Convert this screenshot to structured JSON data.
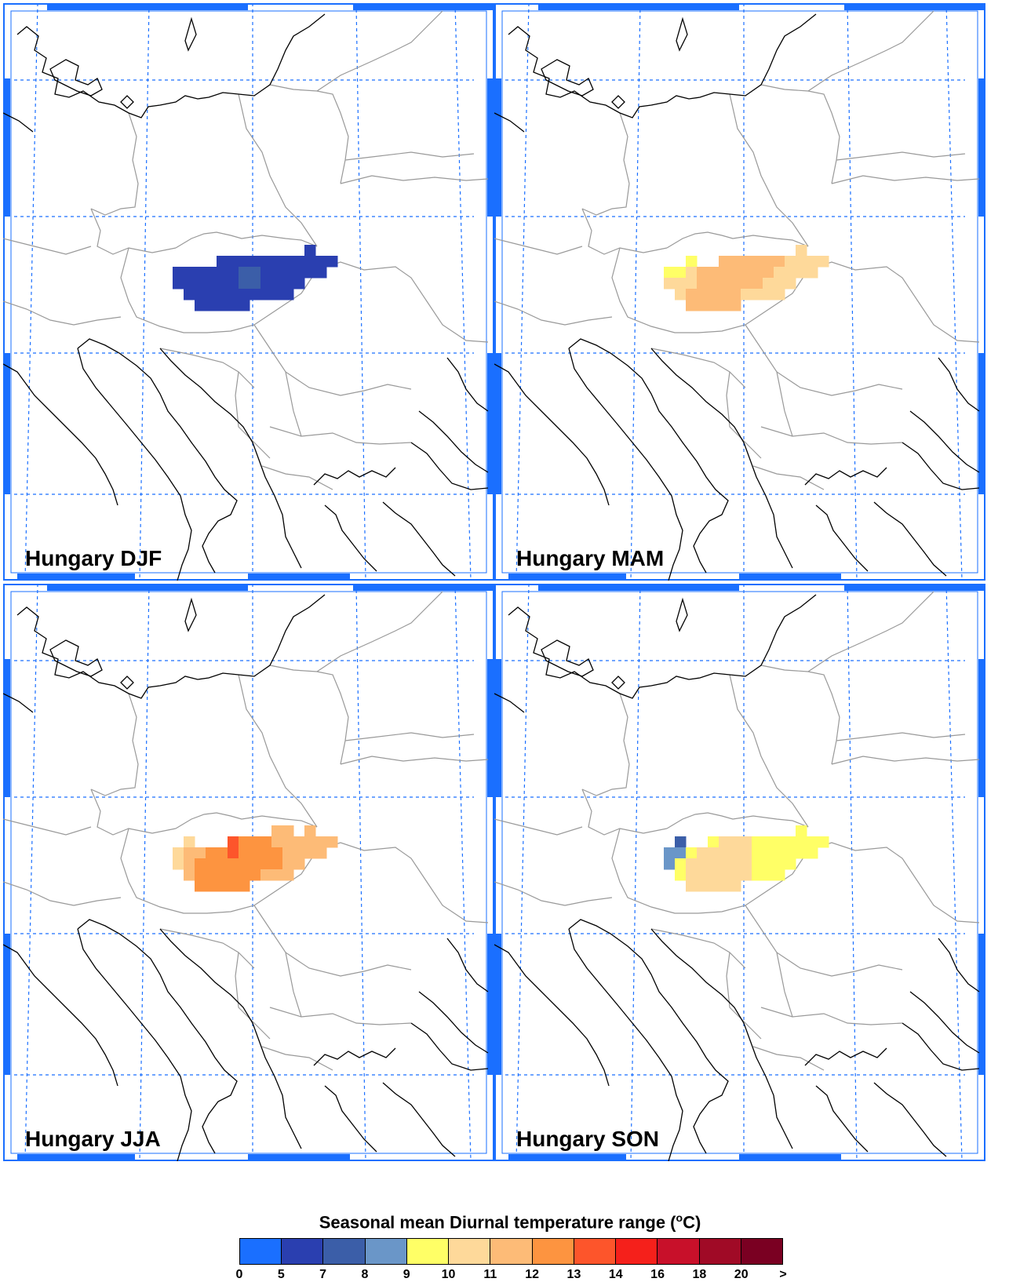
{
  "panels": [
    {
      "id": "djf",
      "label": "Hungary DJF",
      "cells": [
        {
          "c": 12,
          "r": 0,
          "v": 6
        },
        {
          "c": 12,
          "r": 1,
          "v": 6
        },
        {
          "c": 4,
          "r": 1,
          "v": 6
        },
        {
          "c": 5,
          "r": 1,
          "v": 6
        },
        {
          "c": 6,
          "r": 1,
          "v": 6
        },
        {
          "c": 7,
          "r": 1,
          "v": 6
        },
        {
          "c": 8,
          "r": 1,
          "v": 6
        },
        {
          "c": 9,
          "r": 1,
          "v": 6
        },
        {
          "c": 10,
          "r": 1,
          "v": 6
        },
        {
          "c": 11,
          "r": 1,
          "v": 6
        },
        {
          "c": 13,
          "r": 1,
          "v": 6
        },
        {
          "c": 14,
          "r": 1,
          "v": 6
        },
        {
          "c": 0,
          "r": 2,
          "v": 6
        },
        {
          "c": 1,
          "r": 2,
          "v": 6
        },
        {
          "c": 2,
          "r": 2,
          "v": 6
        },
        {
          "c": 3,
          "r": 2,
          "v": 6
        },
        {
          "c": 4,
          "r": 2,
          "v": 6
        },
        {
          "c": 5,
          "r": 2,
          "v": 6
        },
        {
          "c": 6,
          "r": 2,
          "v": 7.5
        },
        {
          "c": 7,
          "r": 2,
          "v": 7.5
        },
        {
          "c": 8,
          "r": 2,
          "v": 6
        },
        {
          "c": 9,
          "r": 2,
          "v": 6
        },
        {
          "c": 10,
          "r": 2,
          "v": 6
        },
        {
          "c": 11,
          "r": 2,
          "v": 6
        },
        {
          "c": 12,
          "r": 2,
          "v": 6
        },
        {
          "c": 13,
          "r": 2,
          "v": 6
        },
        {
          "c": 0,
          "r": 3,
          "v": 6
        },
        {
          "c": 1,
          "r": 3,
          "v": 6
        },
        {
          "c": 2,
          "r": 3,
          "v": 6
        },
        {
          "c": 3,
          "r": 3,
          "v": 6
        },
        {
          "c": 4,
          "r": 3,
          "v": 6
        },
        {
          "c": 5,
          "r": 3,
          "v": 6
        },
        {
          "c": 6,
          "r": 3,
          "v": 7.5
        },
        {
          "c": 7,
          "r": 3,
          "v": 7.5
        },
        {
          "c": 8,
          "r": 3,
          "v": 6
        },
        {
          "c": 9,
          "r": 3,
          "v": 6
        },
        {
          "c": 10,
          "r": 3,
          "v": 6
        },
        {
          "c": 11,
          "r": 3,
          "v": 6
        },
        {
          "c": 1,
          "r": 4,
          "v": 6
        },
        {
          "c": 2,
          "r": 4,
          "v": 6
        },
        {
          "c": 3,
          "r": 4,
          "v": 6
        },
        {
          "c": 4,
          "r": 4,
          "v": 6
        },
        {
          "c": 5,
          "r": 4,
          "v": 6
        },
        {
          "c": 6,
          "r": 4,
          "v": 6
        },
        {
          "c": 7,
          "r": 4,
          "v": 6
        },
        {
          "c": 8,
          "r": 4,
          "v": 6
        },
        {
          "c": 9,
          "r": 4,
          "v": 6
        },
        {
          "c": 10,
          "r": 4,
          "v": 6
        },
        {
          "c": 2,
          "r": 5,
          "v": 6
        },
        {
          "c": 3,
          "r": 5,
          "v": 6
        },
        {
          "c": 4,
          "r": 5,
          "v": 6
        },
        {
          "c": 5,
          "r": 5,
          "v": 6
        },
        {
          "c": 6,
          "r": 5,
          "v": 6
        }
      ]
    },
    {
      "id": "mam",
      "label": "Hungary MAM",
      "cells": [
        {
          "c": 12,
          "r": 0,
          "v": 10.5
        },
        {
          "c": 12,
          "r": 1,
          "v": 10.5
        },
        {
          "c": 2,
          "r": 1,
          "v": 9.5
        },
        {
          "c": 5,
          "r": 1,
          "v": 11.5
        },
        {
          "c": 6,
          "r": 1,
          "v": 11.5
        },
        {
          "c": 7,
          "r": 1,
          "v": 11.5
        },
        {
          "c": 8,
          "r": 1,
          "v": 11.5
        },
        {
          "c": 9,
          "r": 1,
          "v": 11.5
        },
        {
          "c": 10,
          "r": 1,
          "v": 11.5
        },
        {
          "c": 11,
          "r": 1,
          "v": 10.5
        },
        {
          "c": 13,
          "r": 1,
          "v": 10.5
        },
        {
          "c": 14,
          "r": 1,
          "v": 10.5
        },
        {
          "c": 0,
          "r": 2,
          "v": 9.5
        },
        {
          "c": 1,
          "r": 2,
          "v": 9.5
        },
        {
          "c": 2,
          "r": 2,
          "v": 10.5
        },
        {
          "c": 3,
          "r": 2,
          "v": 11.5
        },
        {
          "c": 4,
          "r": 2,
          "v": 11.5
        },
        {
          "c": 5,
          "r": 2,
          "v": 11.5
        },
        {
          "c": 6,
          "r": 2,
          "v": 11.5
        },
        {
          "c": 7,
          "r": 2,
          "v": 11.5
        },
        {
          "c": 8,
          "r": 2,
          "v": 11.5
        },
        {
          "c": 9,
          "r": 2,
          "v": 11.5
        },
        {
          "c": 10,
          "r": 2,
          "v": 10.5
        },
        {
          "c": 11,
          "r": 2,
          "v": 10.5
        },
        {
          "c": 12,
          "r": 2,
          "v": 10.5
        },
        {
          "c": 13,
          "r": 2,
          "v": 10.5
        },
        {
          "c": 0,
          "r": 3,
          "v": 10.5
        },
        {
          "c": 1,
          "r": 3,
          "v": 10.5
        },
        {
          "c": 2,
          "r": 3,
          "v": 10.5
        },
        {
          "c": 3,
          "r": 3,
          "v": 11.5
        },
        {
          "c": 4,
          "r": 3,
          "v": 11.5
        },
        {
          "c": 5,
          "r": 3,
          "v": 11.5
        },
        {
          "c": 6,
          "r": 3,
          "v": 11.5
        },
        {
          "c": 7,
          "r": 3,
          "v": 11.5
        },
        {
          "c": 8,
          "r": 3,
          "v": 11.5
        },
        {
          "c": 9,
          "r": 3,
          "v": 10.5
        },
        {
          "c": 10,
          "r": 3,
          "v": 10.5
        },
        {
          "c": 11,
          "r": 3,
          "v": 10.5
        },
        {
          "c": 1,
          "r": 4,
          "v": 10.5
        },
        {
          "c": 2,
          "r": 4,
          "v": 11.5
        },
        {
          "c": 3,
          "r": 4,
          "v": 11.5
        },
        {
          "c": 4,
          "r": 4,
          "v": 11.5
        },
        {
          "c": 5,
          "r": 4,
          "v": 11.5
        },
        {
          "c": 6,
          "r": 4,
          "v": 11.5
        },
        {
          "c": 7,
          "r": 4,
          "v": 10.5
        },
        {
          "c": 8,
          "r": 4,
          "v": 10.5
        },
        {
          "c": 9,
          "r": 4,
          "v": 10.5
        },
        {
          "c": 10,
          "r": 4,
          "v": 10.5
        },
        {
          "c": 2,
          "r": 5,
          "v": 11.5
        },
        {
          "c": 3,
          "r": 5,
          "v": 11.5
        },
        {
          "c": 4,
          "r": 5,
          "v": 11.5
        },
        {
          "c": 5,
          "r": 5,
          "v": 11.5
        },
        {
          "c": 6,
          "r": 5,
          "v": 11.5
        }
      ]
    },
    {
      "id": "jja",
      "label": "Hungary JJA",
      "cells": [
        {
          "c": 9,
          "r": 0,
          "v": 11.5
        },
        {
          "c": 10,
          "r": 0,
          "v": 11.5
        },
        {
          "c": 12,
          "r": 0,
          "v": 11.5
        },
        {
          "c": 12,
          "r": 1,
          "v": 11.5
        },
        {
          "c": 1,
          "r": 1,
          "v": 10.5
        },
        {
          "c": 5,
          "r": 1,
          "v": 13.5
        },
        {
          "c": 6,
          "r": 1,
          "v": 12.5
        },
        {
          "c": 7,
          "r": 1,
          "v": 12.5
        },
        {
          "c": 8,
          "r": 1,
          "v": 12.5
        },
        {
          "c": 9,
          "r": 1,
          "v": 11.5
        },
        {
          "c": 10,
          "r": 1,
          "v": 11.5
        },
        {
          "c": 11,
          "r": 1,
          "v": 11.5
        },
        {
          "c": 13,
          "r": 1,
          "v": 11.5
        },
        {
          "c": 14,
          "r": 1,
          "v": 11.5
        },
        {
          "c": 0,
          "r": 2,
          "v": 10.5
        },
        {
          "c": 1,
          "r": 2,
          "v": 11.5
        },
        {
          "c": 2,
          "r": 2,
          "v": 11.5
        },
        {
          "c": 3,
          "r": 2,
          "v": 12.5
        },
        {
          "c": 4,
          "r": 2,
          "v": 12.5
        },
        {
          "c": 5,
          "r": 2,
          "v": 13.5
        },
        {
          "c": 6,
          "r": 2,
          "v": 12.5
        },
        {
          "c": 7,
          "r": 2,
          "v": 12.5
        },
        {
          "c": 8,
          "r": 2,
          "v": 12.5
        },
        {
          "c": 9,
          "r": 2,
          "v": 12.5
        },
        {
          "c": 10,
          "r": 2,
          "v": 11.5
        },
        {
          "c": 11,
          "r": 2,
          "v": 11.5
        },
        {
          "c": 12,
          "r": 2,
          "v": 11.5
        },
        {
          "c": 13,
          "r": 2,
          "v": 11.5
        },
        {
          "c": 0,
          "r": 3,
          "v": 10.5
        },
        {
          "c": 1,
          "r": 3,
          "v": 11.5
        },
        {
          "c": 2,
          "r": 3,
          "v": 12.5
        },
        {
          "c": 3,
          "r": 3,
          "v": 12.5
        },
        {
          "c": 4,
          "r": 3,
          "v": 12.5
        },
        {
          "c": 5,
          "r": 3,
          "v": 12.5
        },
        {
          "c": 6,
          "r": 3,
          "v": 12.5
        },
        {
          "c": 7,
          "r": 3,
          "v": 12.5
        },
        {
          "c": 8,
          "r": 3,
          "v": 12.5
        },
        {
          "c": 9,
          "r": 3,
          "v": 12.5
        },
        {
          "c": 10,
          "r": 3,
          "v": 11.5
        },
        {
          "c": 11,
          "r": 3,
          "v": 11.5
        },
        {
          "c": 1,
          "r": 4,
          "v": 11.5
        },
        {
          "c": 2,
          "r": 4,
          "v": 12.5
        },
        {
          "c": 3,
          "r": 4,
          "v": 12.5
        },
        {
          "c": 4,
          "r": 4,
          "v": 12.5
        },
        {
          "c": 5,
          "r": 4,
          "v": 12.5
        },
        {
          "c": 6,
          "r": 4,
          "v": 12.5
        },
        {
          "c": 7,
          "r": 4,
          "v": 12.5
        },
        {
          "c": 8,
          "r": 4,
          "v": 11.5
        },
        {
          "c": 9,
          "r": 4,
          "v": 11.5
        },
        {
          "c": 10,
          "r": 4,
          "v": 11.5
        },
        {
          "c": 2,
          "r": 5,
          "v": 12.5
        },
        {
          "c": 3,
          "r": 5,
          "v": 12.5
        },
        {
          "c": 4,
          "r": 5,
          "v": 12.5
        },
        {
          "c": 5,
          "r": 5,
          "v": 12.5
        },
        {
          "c": 6,
          "r": 5,
          "v": 12.5
        }
      ]
    },
    {
      "id": "son",
      "label": "Hungary SON",
      "cells": [
        {
          "c": 12,
          "r": 0,
          "v": 9.5
        },
        {
          "c": 12,
          "r": 1,
          "v": 9.5
        },
        {
          "c": 1,
          "r": 1,
          "v": 7.5
        },
        {
          "c": 4,
          "r": 1,
          "v": 9.5
        },
        {
          "c": 5,
          "r": 1,
          "v": 10.5
        },
        {
          "c": 6,
          "r": 1,
          "v": 10.5
        },
        {
          "c": 7,
          "r": 1,
          "v": 10.5
        },
        {
          "c": 8,
          "r": 1,
          "v": 9.5
        },
        {
          "c": 9,
          "r": 1,
          "v": 9.5
        },
        {
          "c": 10,
          "r": 1,
          "v": 9.5
        },
        {
          "c": 11,
          "r": 1,
          "v": 9.5
        },
        {
          "c": 13,
          "r": 1,
          "v": 9.5
        },
        {
          "c": 14,
          "r": 1,
          "v": 9.5
        },
        {
          "c": 0,
          "r": 2,
          "v": 8.5
        },
        {
          "c": 1,
          "r": 2,
          "v": 8.5
        },
        {
          "c": 2,
          "r": 2,
          "v": 9.5
        },
        {
          "c": 3,
          "r": 2,
          "v": 10.5
        },
        {
          "c": 4,
          "r": 2,
          "v": 10.5
        },
        {
          "c": 5,
          "r": 2,
          "v": 10.5
        },
        {
          "c": 6,
          "r": 2,
          "v": 10.5
        },
        {
          "c": 7,
          "r": 2,
          "v": 10.5
        },
        {
          "c": 8,
          "r": 2,
          "v": 9.5
        },
        {
          "c": 9,
          "r": 2,
          "v": 9.5
        },
        {
          "c": 10,
          "r": 2,
          "v": 9.5
        },
        {
          "c": 11,
          "r": 2,
          "v": 9.5
        },
        {
          "c": 12,
          "r": 2,
          "v": 9.5
        },
        {
          "c": 13,
          "r": 2,
          "v": 9.5
        },
        {
          "c": 0,
          "r": 3,
          "v": 8.5
        },
        {
          "c": 1,
          "r": 3,
          "v": 9.5
        },
        {
          "c": 2,
          "r": 3,
          "v": 10.5
        },
        {
          "c": 3,
          "r": 3,
          "v": 10.5
        },
        {
          "c": 4,
          "r": 3,
          "v": 10.5
        },
        {
          "c": 5,
          "r": 3,
          "v": 10.5
        },
        {
          "c": 6,
          "r": 3,
          "v": 10.5
        },
        {
          "c": 7,
          "r": 3,
          "v": 10.5
        },
        {
          "c": 8,
          "r": 3,
          "v": 9.5
        },
        {
          "c": 9,
          "r": 3,
          "v": 9.5
        },
        {
          "c": 10,
          "r": 3,
          "v": 9.5
        },
        {
          "c": 11,
          "r": 3,
          "v": 9.5
        },
        {
          "c": 1,
          "r": 4,
          "v": 9.5
        },
        {
          "c": 2,
          "r": 4,
          "v": 10.5
        },
        {
          "c": 3,
          "r": 4,
          "v": 10.5
        },
        {
          "c": 4,
          "r": 4,
          "v": 10.5
        },
        {
          "c": 5,
          "r": 4,
          "v": 10.5
        },
        {
          "c": 6,
          "r": 4,
          "v": 10.5
        },
        {
          "c": 7,
          "r": 4,
          "v": 10.5
        },
        {
          "c": 8,
          "r": 4,
          "v": 9.5
        },
        {
          "c": 9,
          "r": 4,
          "v": 9.5
        },
        {
          "c": 10,
          "r": 4,
          "v": 9.5
        },
        {
          "c": 2,
          "r": 5,
          "v": 10.5
        },
        {
          "c": 3,
          "r": 5,
          "v": 10.5
        },
        {
          "c": 4,
          "r": 5,
          "v": 10.5
        },
        {
          "c": 5,
          "r": 5,
          "v": 10.5
        },
        {
          "c": 6,
          "r": 5,
          "v": 10.5
        }
      ]
    }
  ],
  "legend": {
    "title": "Seasonal mean Diurnal temperature range (",
    "title_sup": "o",
    "title_unit": "C)",
    "colors": [
      "#1a6fff",
      "#2a3fb0",
      "#3b5ea8",
      "#6a96c8",
      "#ffff66",
      "#fed99a",
      "#fdbb77",
      "#fd9440",
      "#fd552b",
      "#f5201b",
      "#c8102a",
      "#a00a26",
      "#7a0022"
    ],
    "ticks": [
      "0",
      "5",
      "7",
      "8",
      "9",
      "10",
      "11",
      "12",
      "13",
      "14",
      "16",
      "18",
      "20",
      ">"
    ],
    "bounds": [
      0,
      5,
      7,
      8,
      9,
      10,
      11,
      12,
      13,
      14,
      16,
      18,
      20
    ]
  },
  "map_style": {
    "coast_color": "#000000",
    "border_color": "#999999",
    "grid_color": "#1a6fff",
    "frame_color": "#1a6fff"
  }
}
